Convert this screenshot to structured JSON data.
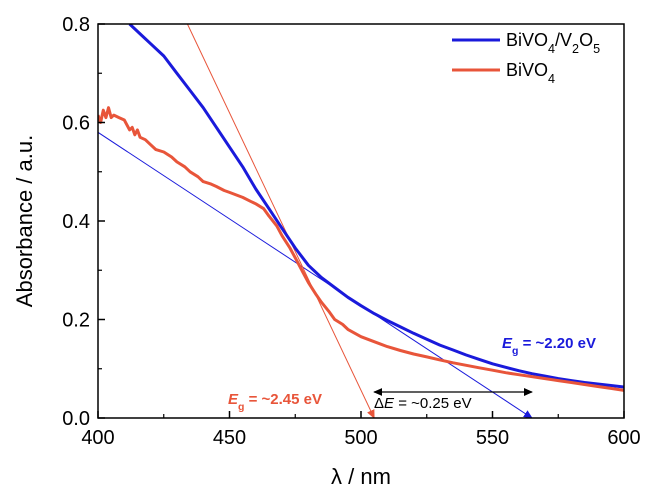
{
  "chart_data": {
    "type": "line",
    "xlabel": "λ / nm",
    "ylabel": "Absorbance / a.u.",
    "xlim": [
      400,
      600
    ],
    "ylim": [
      0.0,
      0.8
    ],
    "x_ticks": [
      "400",
      "450",
      "500",
      "550",
      "600"
    ],
    "y_ticks": [
      "0.0",
      "0.2",
      "0.4",
      "0.6",
      "0.8"
    ],
    "grid": false,
    "legend_position": "top-right",
    "series": [
      {
        "name": "BiVO4/V2O5",
        "legend_parts": [
          [
            "BiVO",
            "n"
          ],
          [
            "4",
            "sub"
          ],
          [
            "/V",
            "n"
          ],
          [
            "2",
            "sub"
          ],
          [
            "O",
            "n"
          ],
          [
            "5",
            "sub"
          ]
        ],
        "color": "#1a1adb",
        "points": [
          [
            412,
            0.8
          ],
          [
            416,
            0.78
          ],
          [
            420,
            0.76
          ],
          [
            425,
            0.735
          ],
          [
            430,
            0.7
          ],
          [
            435,
            0.665
          ],
          [
            440,
            0.63
          ],
          [
            445,
            0.59
          ],
          [
            450,
            0.55
          ],
          [
            455,
            0.51
          ],
          [
            460,
            0.465
          ],
          [
            465,
            0.425
          ],
          [
            470,
            0.385
          ],
          [
            475,
            0.345
          ],
          [
            480,
            0.31
          ],
          [
            485,
            0.285
          ],
          [
            490,
            0.265
          ],
          [
            495,
            0.245
          ],
          [
            500,
            0.228
          ],
          [
            505,
            0.212
          ],
          [
            510,
            0.198
          ],
          [
            515,
            0.185
          ],
          [
            520,
            0.172
          ],
          [
            525,
            0.16
          ],
          [
            530,
            0.148
          ],
          [
            535,
            0.138
          ],
          [
            540,
            0.128
          ],
          [
            545,
            0.119
          ],
          [
            550,
            0.11
          ],
          [
            555,
            0.103
          ],
          [
            560,
            0.096
          ],
          [
            565,
            0.09
          ],
          [
            570,
            0.085
          ],
          [
            575,
            0.08
          ],
          [
            580,
            0.076
          ],
          [
            585,
            0.072
          ],
          [
            590,
            0.069
          ],
          [
            595,
            0.066
          ],
          [
            600,
            0.063
          ]
        ]
      },
      {
        "name": "BiVO4",
        "legend_parts": [
          [
            "BiVO",
            "n"
          ],
          [
            "4",
            "sub"
          ]
        ],
        "color": "#e8553a",
        "points": [
          [
            400,
            0.615
          ],
          [
            401,
            0.6
          ],
          [
            402,
            0.625
          ],
          [
            403,
            0.61
          ],
          [
            404,
            0.63
          ],
          [
            405,
            0.61
          ],
          [
            406,
            0.615
          ],
          [
            408,
            0.61
          ],
          [
            410,
            0.605
          ],
          [
            412,
            0.585
          ],
          [
            413,
            0.59
          ],
          [
            414,
            0.575
          ],
          [
            415,
            0.585
          ],
          [
            416,
            0.57
          ],
          [
            418,
            0.565
          ],
          [
            420,
            0.555
          ],
          [
            422,
            0.545
          ],
          [
            425,
            0.54
          ],
          [
            428,
            0.53
          ],
          [
            430,
            0.52
          ],
          [
            433,
            0.51
          ],
          [
            435,
            0.5
          ],
          [
            438,
            0.49
          ],
          [
            440,
            0.48
          ],
          [
            443,
            0.475
          ],
          [
            445,
            0.47
          ],
          [
            448,
            0.462
          ],
          [
            450,
            0.458
          ],
          [
            453,
            0.452
          ],
          [
            455,
            0.448
          ],
          [
            458,
            0.44
          ],
          [
            460,
            0.435
          ],
          [
            463,
            0.425
          ],
          [
            465,
            0.41
          ],
          [
            468,
            0.39
          ],
          [
            470,
            0.37
          ],
          [
            473,
            0.345
          ],
          [
            475,
            0.325
          ],
          [
            478,
            0.295
          ],
          [
            480,
            0.275
          ],
          [
            483,
            0.25
          ],
          [
            485,
            0.235
          ],
          [
            488,
            0.215
          ],
          [
            490,
            0.2
          ],
          [
            493,
            0.19
          ],
          [
            495,
            0.18
          ],
          [
            500,
            0.165
          ],
          [
            505,
            0.155
          ],
          [
            510,
            0.145
          ],
          [
            515,
            0.137
          ],
          [
            520,
            0.13
          ],
          [
            525,
            0.124
          ],
          [
            530,
            0.118
          ],
          [
            535,
            0.112
          ],
          [
            540,
            0.107
          ],
          [
            545,
            0.102
          ],
          [
            550,
            0.097
          ],
          [
            555,
            0.092
          ],
          [
            560,
            0.088
          ],
          [
            565,
            0.084
          ],
          [
            570,
            0.08
          ],
          [
            575,
            0.076
          ],
          [
            580,
            0.072
          ],
          [
            585,
            0.068
          ],
          [
            590,
            0.064
          ],
          [
            595,
            0.06
          ],
          [
            600,
            0.056
          ]
        ]
      }
    ],
    "tangent_lines": [
      {
        "series": "BiVO4/V2O5",
        "color": "#1a1adb",
        "from": [
          400,
          0.58
        ],
        "to": [
          565,
          0.0
        ]
      },
      {
        "series": "BiVO4",
        "color": "#e8553a",
        "from": [
          434,
          0.8
        ],
        "to": [
          505,
          0.0
        ]
      }
    ],
    "annotations": {
      "eg_blue": {
        "italic": "E",
        "sub": "g",
        "rest": " = ~2.20 eV",
        "color": "#1a1adb"
      },
      "eg_red": {
        "italic": "E",
        "sub": "g",
        "rest": " = ~2.45 eV",
        "color": "#e8553a"
      },
      "delta": {
        "prefix": "Δ",
        "italic": "E",
        "rest": " = ~0.25 eV",
        "from": 505,
        "to": 565
      }
    }
  }
}
